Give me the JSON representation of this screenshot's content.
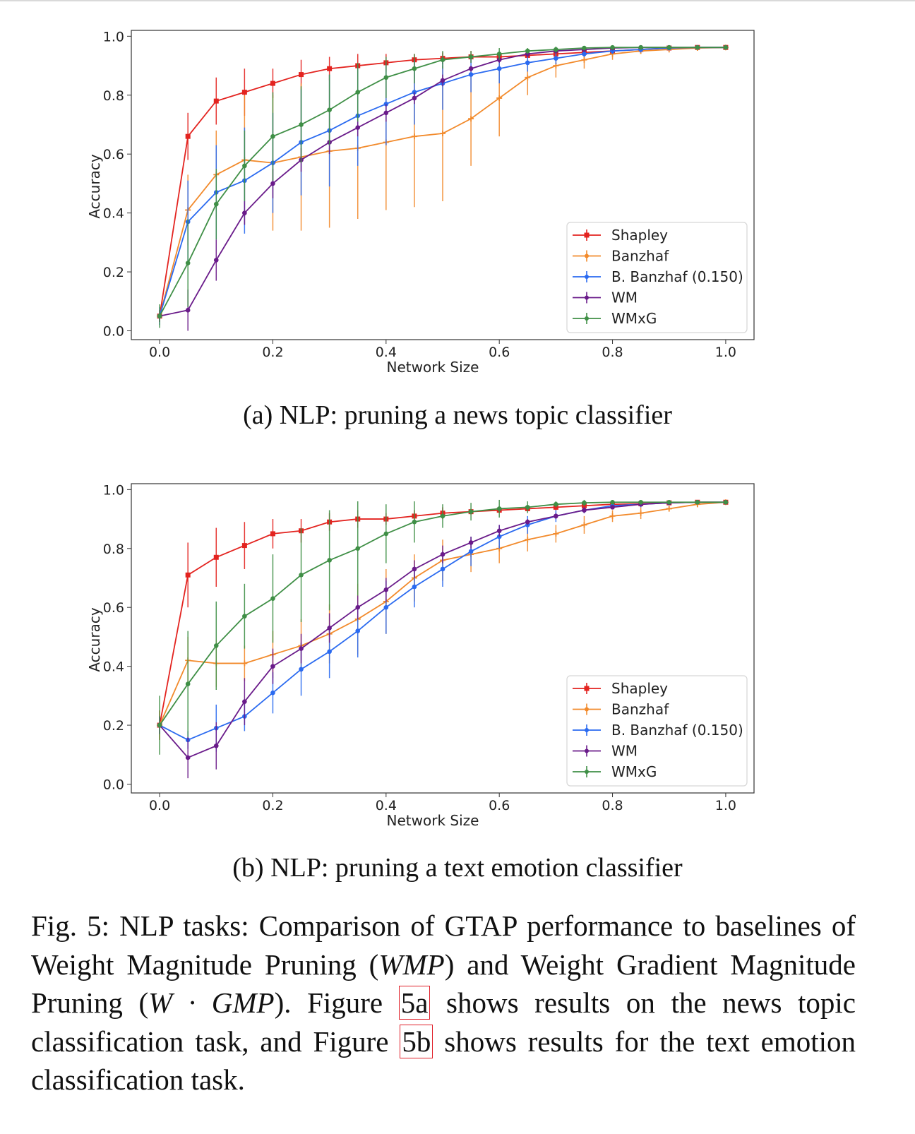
{
  "colors": {
    "Shapley": "#e3231f",
    "Banzhaf": "#f28a2b",
    "B. Banzhaf (0.150)": "#2a6af0",
    "WM": "#6a1b8a",
    "WMxG": "#3f8f46"
  },
  "captions": {
    "sub_a": "(a) NLP: pruning a news topic classifier",
    "sub_b": "(b) NLP: pruning a text emotion classifier",
    "fig_prefix": "Fig. 5: NLP tasks: Comparison of GTAP performance to baselines of Weight Magnitude Pruning (",
    "wmp": "WMP",
    "mid1": ") and Weight Gradient Magnitude Pruning (",
    "wgmp": "W · GMP",
    "mid2": "). Figure ",
    "ref_a": "5a",
    "mid3": " shows results on the news topic classification task, and Figure ",
    "ref_b": "5b",
    "end": " shows results for the text emotion classification task."
  },
  "chart_data": [
    {
      "type": "line",
      "xlabel": "Network Size",
      "ylabel": "Accuracy",
      "xlim": [
        -0.05,
        1.05
      ],
      "ylim": [
        -0.03,
        1.02
      ],
      "x_ticks": [
        "0.0",
        "0.2",
        "0.4",
        "0.6",
        "0.8",
        "1.0"
      ],
      "y_ticks": [
        "0.0",
        "0.2",
        "0.4",
        "0.6",
        "0.8",
        "1.0"
      ],
      "legend_position": "lower-right",
      "x": [
        0.0,
        0.05,
        0.1,
        0.15,
        0.2,
        0.25,
        0.3,
        0.35,
        0.4,
        0.45,
        0.5,
        0.55,
        0.6,
        0.65,
        0.7,
        0.75,
        0.8,
        0.85,
        0.9,
        0.95,
        1.0
      ],
      "series": [
        {
          "name": "Shapley",
          "values": [
            0.05,
            0.66,
            0.78,
            0.81,
            0.84,
            0.87,
            0.89,
            0.9,
            0.91,
            0.92,
            0.925,
            0.93,
            0.93,
            0.935,
            0.94,
            0.945,
            0.95,
            0.955,
            0.96,
            0.962,
            0.962
          ],
          "err": [
            0.02,
            0.08,
            0.08,
            0.08,
            0.05,
            0.05,
            0.04,
            0.04,
            0.03,
            0.02,
            0.02,
            0.02,
            0.01,
            0.01,
            0.01,
            0.01,
            0.01,
            0.01,
            0.005,
            0.005,
            0.005
          ]
        },
        {
          "name": "Banzhaf",
          "values": [
            0.05,
            0.41,
            0.53,
            0.58,
            0.57,
            0.59,
            0.61,
            0.62,
            0.64,
            0.66,
            0.67,
            0.72,
            0.79,
            0.86,
            0.9,
            0.92,
            0.94,
            0.95,
            0.955,
            0.96,
            0.962
          ],
          "err": [
            0.02,
            0.12,
            0.15,
            0.22,
            0.23,
            0.25,
            0.26,
            0.24,
            0.23,
            0.24,
            0.23,
            0.16,
            0.13,
            0.06,
            0.04,
            0.03,
            0.02,
            0.01,
            0.01,
            0.005,
            0.005
          ]
        },
        {
          "name": "B. Banzhaf (0.150)",
          "values": [
            0.05,
            0.37,
            0.47,
            0.51,
            0.57,
            0.64,
            0.68,
            0.73,
            0.77,
            0.81,
            0.84,
            0.87,
            0.89,
            0.91,
            0.925,
            0.94,
            0.95,
            0.955,
            0.96,
            0.962,
            0.962
          ],
          "err": [
            0.03,
            0.14,
            0.16,
            0.18,
            0.17,
            0.18,
            0.19,
            0.17,
            0.14,
            0.11,
            0.09,
            0.06,
            0.05,
            0.03,
            0.02,
            0.01,
            0.01,
            0.01,
            0.005,
            0.005,
            0.005
          ]
        },
        {
          "name": "WM",
          "values": [
            0.05,
            0.07,
            0.24,
            0.4,
            0.5,
            0.58,
            0.64,
            0.69,
            0.74,
            0.79,
            0.85,
            0.89,
            0.92,
            0.94,
            0.95,
            0.955,
            0.96,
            0.962,
            0.962,
            0.962,
            0.962
          ],
          "err": [
            0.02,
            0.07,
            0.07,
            0.04,
            0.05,
            0.04,
            0.04,
            0.03,
            0.03,
            0.02,
            0.02,
            0.01,
            0.01,
            0.01,
            0.005,
            0.005,
            0.005,
            0.005,
            0.005,
            0.005,
            0.005
          ]
        },
        {
          "name": "WMxG",
          "values": [
            0.05,
            0.23,
            0.43,
            0.56,
            0.66,
            0.7,
            0.75,
            0.81,
            0.86,
            0.89,
            0.92,
            0.93,
            0.94,
            0.95,
            0.955,
            0.96,
            0.962,
            0.962,
            0.962,
            0.962,
            0.962
          ],
          "err": [
            0.04,
            0.15,
            0.12,
            0.12,
            0.15,
            0.13,
            0.12,
            0.1,
            0.07,
            0.05,
            0.03,
            0.02,
            0.02,
            0.01,
            0.01,
            0.005,
            0.005,
            0.005,
            0.005,
            0.005,
            0.005
          ]
        }
      ]
    },
    {
      "type": "line",
      "xlabel": "Network Size",
      "ylabel": "Accuracy",
      "xlim": [
        -0.05,
        1.05
      ],
      "ylim": [
        -0.03,
        1.02
      ],
      "x_ticks": [
        "0.0",
        "0.2",
        "0.4",
        "0.6",
        "0.8",
        "1.0"
      ],
      "y_ticks": [
        "0.0",
        "0.2",
        "0.4",
        "0.6",
        "0.8",
        "1.0"
      ],
      "legend_position": "lower-right",
      "x": [
        0.0,
        0.05,
        0.1,
        0.15,
        0.2,
        0.25,
        0.3,
        0.35,
        0.4,
        0.45,
        0.5,
        0.55,
        0.6,
        0.65,
        0.7,
        0.75,
        0.8,
        0.85,
        0.9,
        0.95,
        1.0
      ],
      "series": [
        {
          "name": "Shapley",
          "values": [
            0.2,
            0.71,
            0.77,
            0.81,
            0.85,
            0.86,
            0.89,
            0.9,
            0.9,
            0.91,
            0.92,
            0.925,
            0.93,
            0.935,
            0.94,
            0.945,
            0.95,
            0.952,
            0.955,
            0.957,
            0.957
          ],
          "err": [
            0.05,
            0.11,
            0.1,
            0.08,
            0.05,
            0.04,
            0.03,
            0.03,
            0.02,
            0.02,
            0.02,
            0.01,
            0.01,
            0.01,
            0.01,
            0.01,
            0.005,
            0.005,
            0.005,
            0.005,
            0.005
          ]
        },
        {
          "name": "Banzhaf",
          "values": [
            0.2,
            0.42,
            0.41,
            0.41,
            0.44,
            0.47,
            0.51,
            0.56,
            0.62,
            0.7,
            0.76,
            0.78,
            0.8,
            0.83,
            0.85,
            0.88,
            0.91,
            0.92,
            0.935,
            0.95,
            0.957
          ],
          "err": [
            0.05,
            0.08,
            0.08,
            0.06,
            0.08,
            0.09,
            0.1,
            0.12,
            0.11,
            0.08,
            0.07,
            0.06,
            0.05,
            0.04,
            0.03,
            0.03,
            0.02,
            0.02,
            0.01,
            0.01,
            0.005
          ]
        },
        {
          "name": "B. Banzhaf (0.150)",
          "values": [
            0.2,
            0.15,
            0.19,
            0.23,
            0.31,
            0.39,
            0.45,
            0.52,
            0.6,
            0.67,
            0.73,
            0.79,
            0.84,
            0.88,
            0.91,
            0.93,
            0.945,
            0.95,
            0.955,
            0.957,
            0.957
          ],
          "err": [
            0.03,
            0.03,
            0.08,
            0.05,
            0.07,
            0.09,
            0.09,
            0.09,
            0.09,
            0.07,
            0.06,
            0.05,
            0.04,
            0.03,
            0.02,
            0.01,
            0.01,
            0.01,
            0.005,
            0.005,
            0.005
          ]
        },
        {
          "name": "WM",
          "values": [
            0.2,
            0.09,
            0.13,
            0.28,
            0.4,
            0.46,
            0.53,
            0.6,
            0.66,
            0.73,
            0.78,
            0.82,
            0.86,
            0.89,
            0.91,
            0.93,
            0.94,
            0.95,
            0.955,
            0.957,
            0.957
          ],
          "err": [
            0.03,
            0.07,
            0.08,
            0.08,
            0.06,
            0.05,
            0.05,
            0.04,
            0.04,
            0.03,
            0.03,
            0.02,
            0.02,
            0.01,
            0.01,
            0.01,
            0.005,
            0.005,
            0.005,
            0.005,
            0.005
          ]
        },
        {
          "name": "WMxG",
          "values": [
            0.2,
            0.34,
            0.47,
            0.57,
            0.63,
            0.71,
            0.76,
            0.8,
            0.85,
            0.89,
            0.91,
            0.925,
            0.935,
            0.94,
            0.95,
            0.955,
            0.957,
            0.957,
            0.957,
            0.957,
            0.957
          ],
          "err": [
            0.1,
            0.18,
            0.15,
            0.11,
            0.15,
            0.16,
            0.17,
            0.16,
            0.1,
            0.07,
            0.04,
            0.03,
            0.03,
            0.02,
            0.01,
            0.01,
            0.005,
            0.005,
            0.005,
            0.005,
            0.005
          ]
        }
      ]
    }
  ]
}
